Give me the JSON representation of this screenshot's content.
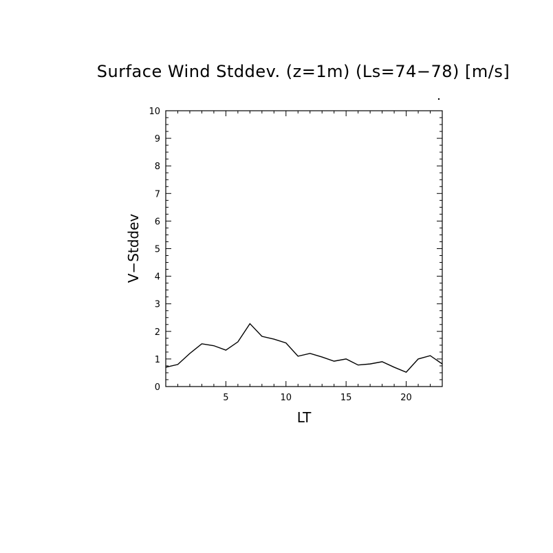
{
  "chart_data": {
    "type": "line",
    "title": "Surface Wind Stddev. (z=1m) (Ls=74−78) [m/s]",
    "xlabel": "LT",
    "ylabel": "V−Stddev",
    "xlim": [
      0,
      23
    ],
    "ylim": [
      0,
      10
    ],
    "x_ticks": [
      5,
      10,
      15,
      20
    ],
    "y_ticks": [
      0,
      1,
      2,
      3,
      4,
      5,
      6,
      7,
      8,
      9,
      10
    ],
    "grid": false,
    "legend": "none",
    "series": [
      {
        "x": [
          0.0,
          1.0,
          2.0,
          3.0,
          4.0,
          5.0,
          6.0,
          7.0,
          8.0,
          9.0,
          10.0,
          11.0,
          12.0,
          13.0,
          14.0,
          15.0,
          16.0,
          17.0,
          18.0,
          19.0,
          20.0,
          21.0,
          22.0,
          23.0
        ],
        "y": [
          0.7,
          0.8,
          1.2,
          1.55,
          1.48,
          1.32,
          1.62,
          2.28,
          1.82,
          1.72,
          1.58,
          1.1,
          1.2,
          1.07,
          0.92,
          1.0,
          0.78,
          0.82,
          0.9,
          0.7,
          0.52,
          1.0,
          1.12,
          0.82
        ]
      }
    ]
  }
}
